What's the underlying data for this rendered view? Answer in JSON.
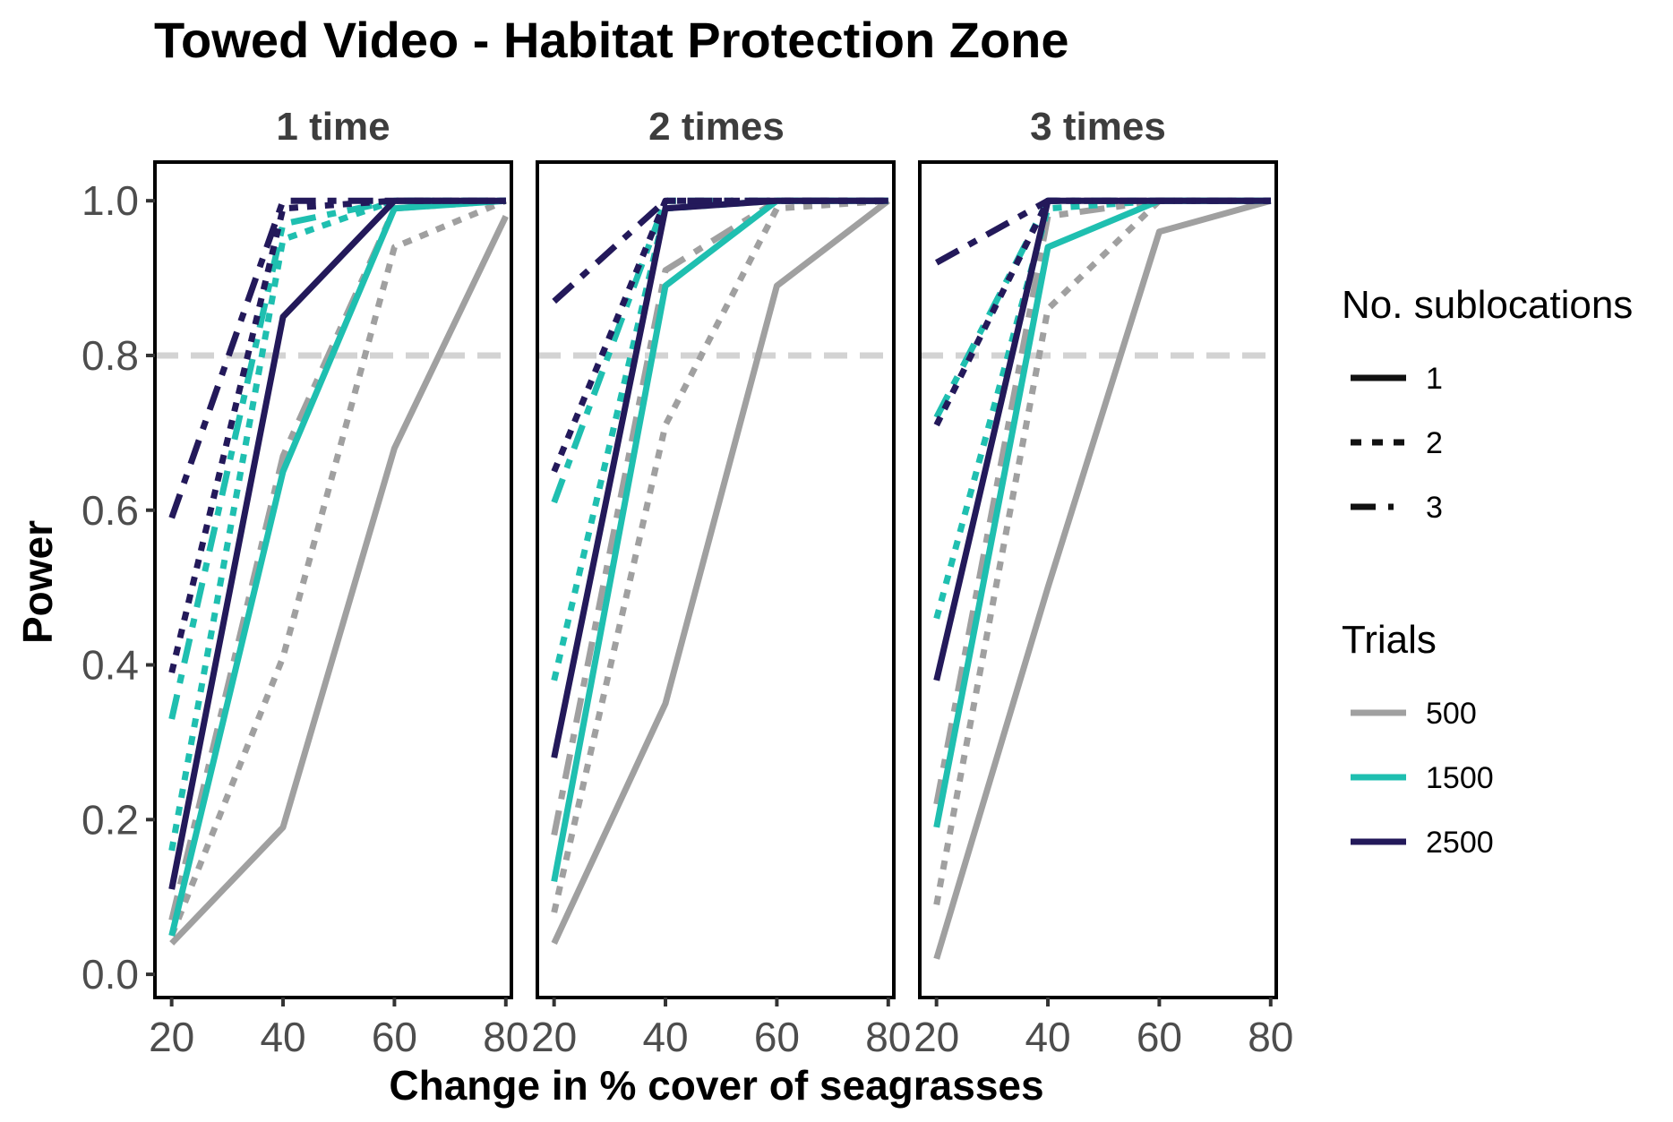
{
  "chart_data": {
    "type": "line",
    "title": "Towed Video - Habitat Protection Zone",
    "xlabel": "Change in % cover of seagrasses",
    "ylabel": "Power",
    "x_ticks": [
      20,
      40,
      60,
      80
    ],
    "y_ticks": [
      "0.0",
      "0.2",
      "0.4",
      "0.6",
      "0.8",
      "1.0"
    ],
    "xlim": [
      17,
      81
    ],
    "ylim": [
      -0.03,
      1.05
    ],
    "reference_line": 0.8,
    "grid": false,
    "legend_placement": "right",
    "colors": {
      "500": "#a0a0a0",
      "1500": "#1fbfb0",
      "2500": "#23195a",
      "reference": "#d3d3d3"
    },
    "legends": [
      {
        "title": "No. sublocations",
        "items": [
          {
            "label": "1",
            "style": "solid"
          },
          {
            "label": "2",
            "style": "dotted"
          },
          {
            "label": "3",
            "style": "dashed"
          }
        ]
      },
      {
        "title": "Trials",
        "items": [
          {
            "label": "500",
            "color": "#a0a0a0"
          },
          {
            "label": "1500",
            "color": "#1fbfb0"
          },
          {
            "label": "2500",
            "color": "#23195a"
          }
        ]
      }
    ],
    "facets": [
      {
        "label": "1 time",
        "x": [
          20,
          40,
          60,
          80
        ],
        "series": [
          {
            "trials": "500",
            "sublocations": "1",
            "values": [
              0.04,
              0.19,
              0.68,
              0.98
            ]
          },
          {
            "trials": "500",
            "sublocations": "2",
            "values": [
              0.05,
              0.41,
              0.94,
              1.0
            ]
          },
          {
            "trials": "500",
            "sublocations": "3",
            "values": [
              0.07,
              0.67,
              0.99,
              1.0
            ]
          },
          {
            "trials": "1500",
            "sublocations": "1",
            "values": [
              0.05,
              0.65,
              0.99,
              1.0
            ]
          },
          {
            "trials": "1500",
            "sublocations": "2",
            "values": [
              0.16,
              0.95,
              1.0,
              1.0
            ]
          },
          {
            "trials": "1500",
            "sublocations": "3",
            "values": [
              0.33,
              0.97,
              1.0,
              1.0
            ]
          },
          {
            "trials": "2500",
            "sublocations": "1",
            "values": [
              0.11,
              0.85,
              1.0,
              1.0
            ]
          },
          {
            "trials": "2500",
            "sublocations": "2",
            "values": [
              0.39,
              0.99,
              1.0,
              1.0
            ]
          },
          {
            "trials": "2500",
            "sublocations": "3",
            "values": [
              0.59,
              1.0,
              1.0,
              1.0
            ]
          }
        ]
      },
      {
        "label": "2 times",
        "x": [
          20,
          40,
          60,
          80
        ],
        "series": [
          {
            "trials": "500",
            "sublocations": "1",
            "values": [
              0.04,
              0.35,
              0.89,
              1.0
            ]
          },
          {
            "trials": "500",
            "sublocations": "2",
            "values": [
              0.08,
              0.71,
              0.99,
              1.0
            ]
          },
          {
            "trials": "500",
            "sublocations": "3",
            "values": [
              0.18,
              0.91,
              1.0,
              1.0
            ]
          },
          {
            "trials": "1500",
            "sublocations": "1",
            "values": [
              0.12,
              0.89,
              1.0,
              1.0
            ]
          },
          {
            "trials": "1500",
            "sublocations": "2",
            "values": [
              0.38,
              0.99,
              1.0,
              1.0
            ]
          },
          {
            "trials": "1500",
            "sublocations": "3",
            "values": [
              0.61,
              1.0,
              1.0,
              1.0
            ]
          },
          {
            "trials": "2500",
            "sublocations": "1",
            "values": [
              0.28,
              0.99,
              1.0,
              1.0
            ]
          },
          {
            "trials": "2500",
            "sublocations": "2",
            "values": [
              0.65,
              1.0,
              1.0,
              1.0
            ]
          },
          {
            "trials": "2500",
            "sublocations": "3",
            "values": [
              0.87,
              1.0,
              1.0,
              1.0
            ]
          }
        ]
      },
      {
        "label": "3 times",
        "x": [
          20,
          40,
          60,
          80
        ],
        "series": [
          {
            "trials": "500",
            "sublocations": "1",
            "values": [
              0.02,
              0.5,
              0.96,
              1.0
            ]
          },
          {
            "trials": "500",
            "sublocations": "2",
            "values": [
              0.09,
              0.86,
              1.0,
              1.0
            ]
          },
          {
            "trials": "500",
            "sublocations": "3",
            "values": [
              0.22,
              0.98,
              1.0,
              1.0
            ]
          },
          {
            "trials": "1500",
            "sublocations": "1",
            "values": [
              0.19,
              0.94,
              1.0,
              1.0
            ]
          },
          {
            "trials": "1500",
            "sublocations": "2",
            "values": [
              0.46,
              0.99,
              1.0,
              1.0
            ]
          },
          {
            "trials": "1500",
            "sublocations": "3",
            "values": [
              0.72,
              1.0,
              1.0,
              1.0
            ]
          },
          {
            "trials": "2500",
            "sublocations": "1",
            "values": [
              0.38,
              1.0,
              1.0,
              1.0
            ]
          },
          {
            "trials": "2500",
            "sublocations": "2",
            "values": [
              0.71,
              1.0,
              1.0,
              1.0
            ]
          },
          {
            "trials": "2500",
            "sublocations": "3",
            "values": [
              0.92,
              1.0,
              1.0,
              1.0
            ]
          }
        ]
      }
    ]
  }
}
